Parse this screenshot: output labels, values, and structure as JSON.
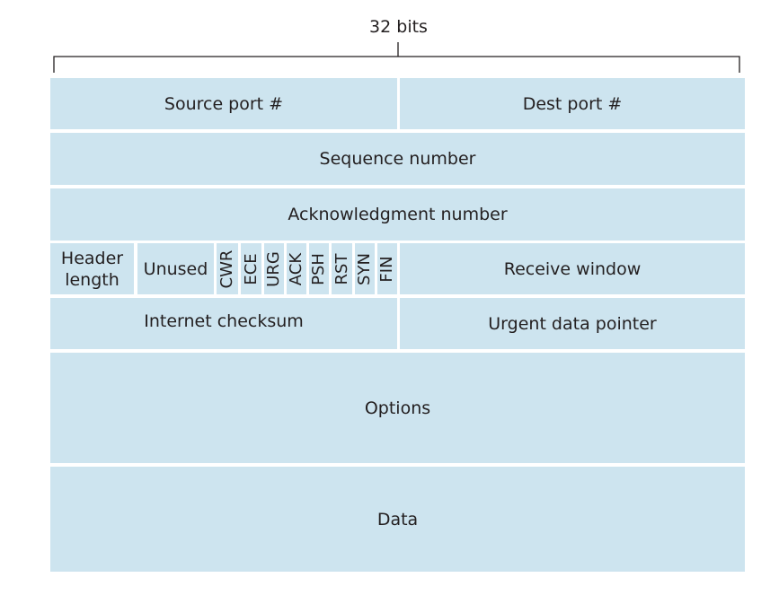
{
  "width_label": "32 bits",
  "rows": {
    "source_port": "Source port #",
    "dest_port": "Dest port #",
    "sequence_number": "Sequence number",
    "acknowledgment_number": "Acknowledgment number",
    "header_length_line1": "Header",
    "header_length_line2": "length",
    "unused": "Unused",
    "flags": [
      "CWR",
      "ECE",
      "URG",
      "ACK",
      "PSH",
      "RST",
      "SYN",
      "FIN"
    ],
    "receive_window": "Receive window",
    "internet_checksum": "Internet checksum",
    "urgent_data_pointer": "Urgent data pointer",
    "options": "Options",
    "data": "Data"
  },
  "colors": {
    "field_fill": "#cde4ef",
    "text": "#231f20"
  }
}
